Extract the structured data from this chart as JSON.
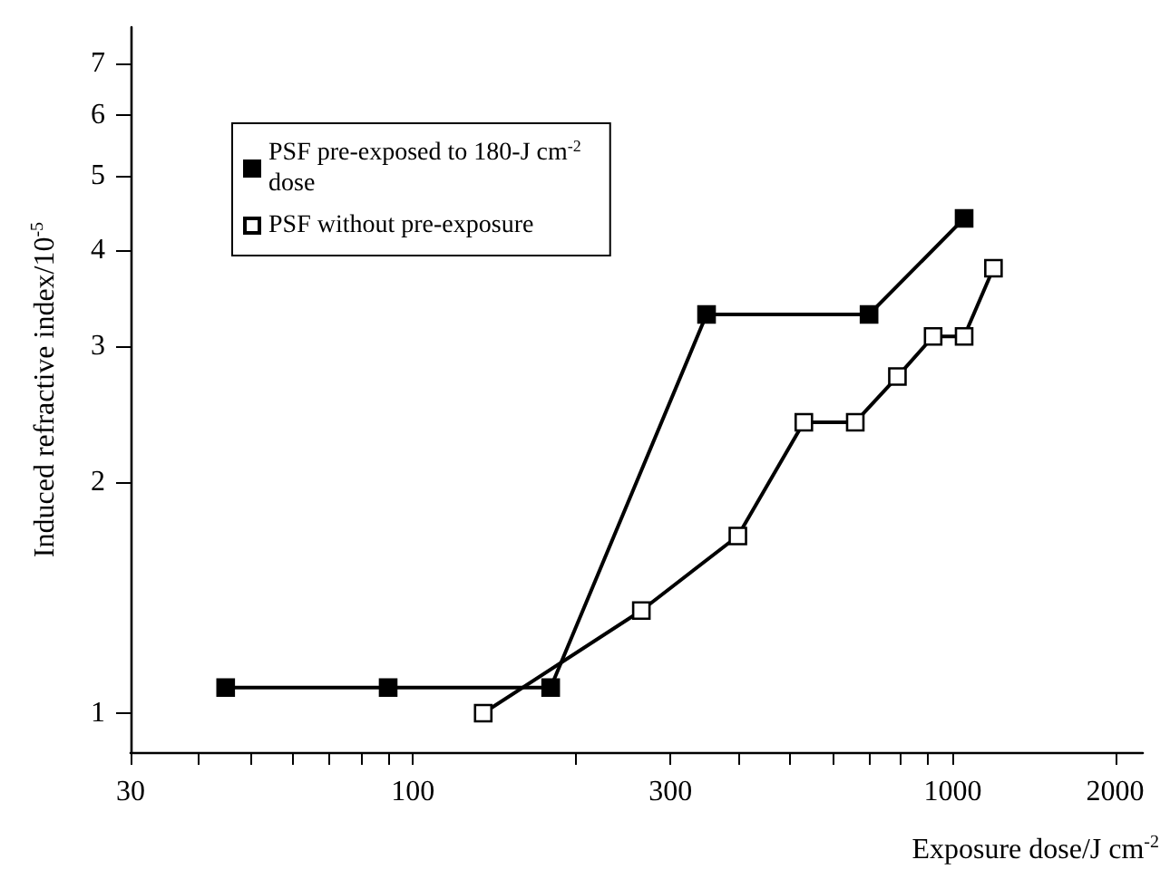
{
  "chart_data": {
    "type": "line",
    "xlabel": "Exposure dose/J cm$^{-2}$",
    "ylabel": "Induced refractive index/10$^{-5}$",
    "log": "xy",
    "marker": "square",
    "line_style": "solid",
    "grid": false,
    "legend": "top left",
    "xlim": [
      30,
      2250
    ],
    "ylim": [
      0.89,
      7.8
    ],
    "xticks": [
      30,
      {
        "value": 40,
        "label": null
      },
      {
        "value": 50,
        "label": null
      },
      {
        "value": 60,
        "label": null
      },
      {
        "value": 70,
        "label": null
      },
      {
        "value": 80,
        "label": null
      },
      {
        "value": 90,
        "label": null
      },
      100,
      {
        "value": 200,
        "label": null
      },
      300,
      {
        "value": 400,
        "label": null
      },
      {
        "value": 500,
        "label": null
      },
      {
        "value": 600,
        "label": null
      },
      {
        "value": 700,
        "label": null
      },
      {
        "value": 800,
        "label": null
      },
      {
        "value": 900,
        "label": null
      },
      1000,
      2000
    ],
    "yticks": [
      1,
      2,
      3,
      4,
      5,
      6,
      7
    ],
    "series": [
      {
        "name": "PSF pre-exposed to 180-J cm$^{-2}$ dose",
        "color": "#000000",
        "x": [
          45,
          90,
          180,
          350,
          700,
          1050
        ],
        "values": [
          1.08,
          1.08,
          1.08,
          3.3,
          3.3,
          4.4
        ]
      },
      {
        "name": "PSF without pre-exposure",
        "color": "#000000",
        "x": [
          135,
          265,
          400,
          530,
          660,
          790,
          920,
          1050,
          1190
        ],
        "values": [
          1.0,
          1.36,
          1.7,
          2.39,
          2.39,
          2.74,
          3.09,
          3.09,
          3.79
        ]
      }
    ]
  }
}
